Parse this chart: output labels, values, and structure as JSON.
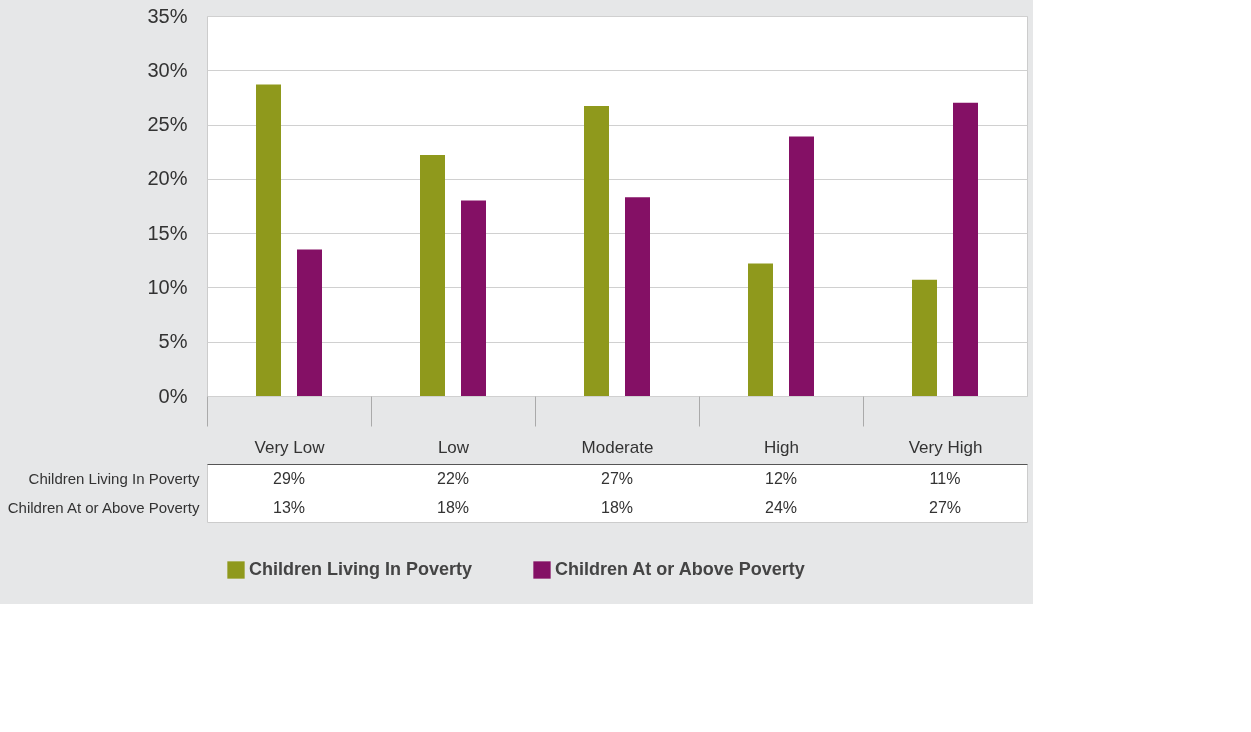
{
  "chart_data": {
    "type": "bar",
    "categories": [
      "Very Low",
      "Low",
      "Moderate",
      "High",
      "Very High"
    ],
    "series": [
      {
        "name": "Children Living In Poverty",
        "color": "#8f991c",
        "values": [
          28.7,
          22.2,
          26.7,
          12.2,
          10.7
        ],
        "value_labels": [
          "29%",
          "22%",
          "27%",
          "12%",
          "11%"
        ]
      },
      {
        "name": "Children At or Above Poverty",
        "color": "#841065",
        "values": [
          13.5,
          18.0,
          18.3,
          23.9,
          27.0
        ],
        "value_labels": [
          "13%",
          "18%",
          "18%",
          "24%",
          "27%"
        ]
      }
    ],
    "ylim": [
      0,
      35
    ],
    "yticks": [
      {
        "value": 0,
        "label": "0%"
      },
      {
        "value": 5,
        "label": "5%"
      },
      {
        "value": 10,
        "label": "10%"
      },
      {
        "value": 15,
        "label": "15%"
      },
      {
        "value": 20,
        "label": "20%"
      },
      {
        "value": 25,
        "label": "25%"
      },
      {
        "value": 30,
        "label": "30%"
      },
      {
        "value": 35,
        "label": "35%"
      }
    ],
    "grid": "y",
    "legend": "bottom"
  }
}
